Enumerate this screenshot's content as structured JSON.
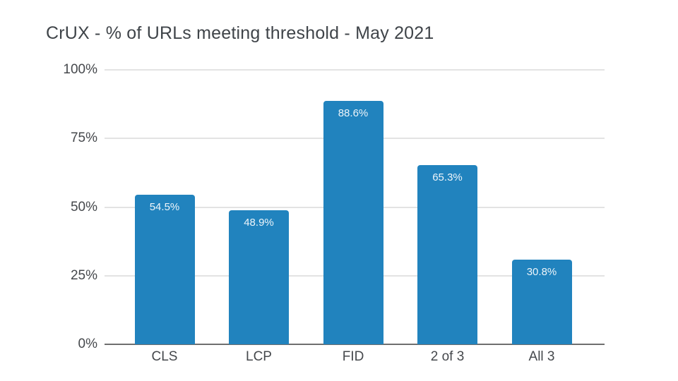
{
  "chart_data": {
    "type": "bar",
    "title": "CrUX - % of URLs meeting threshold - May 2021",
    "categories": [
      "CLS",
      "LCP",
      "FID",
      "2 of 3",
      "All 3"
    ],
    "values": [
      54.5,
      48.9,
      88.6,
      65.3,
      30.8
    ],
    "value_labels": [
      "54.5%",
      "48.9%",
      "88.6%",
      "65.3%",
      "30.8%"
    ],
    "y_ticks": [
      {
        "value": 100,
        "label": "100%"
      },
      {
        "value": 75,
        "label": "75%"
      },
      {
        "value": 50,
        "label": "50%"
      },
      {
        "value": 25,
        "label": "25%"
      },
      {
        "value": 0,
        "label": "0%"
      }
    ],
    "ylim": [
      0,
      100
    ],
    "xlabel": "",
    "ylabel": "",
    "grid": "horizontal",
    "legend": "none",
    "colors": {
      "bar": "#2183be",
      "bar_label": "#eef5fa",
      "gridline": "#e3e3e3",
      "axis_line": "#6f6f6f",
      "tick_text": "#45484c",
      "title": "#3f4449",
      "background": "#ffffff"
    }
  }
}
